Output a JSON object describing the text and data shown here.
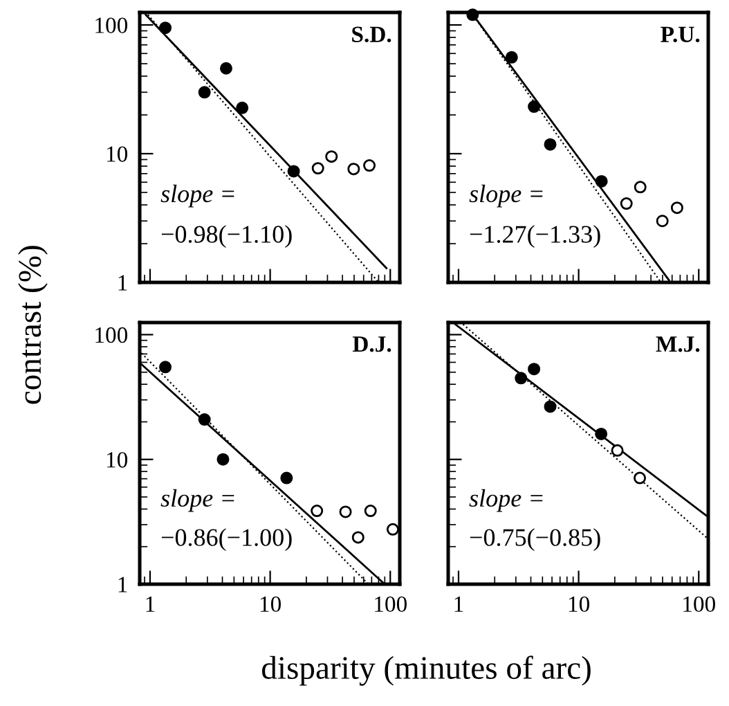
{
  "chart_data": [
    {
      "type": "scatter",
      "title": "S.D.",
      "ylabel": "contrast (%)",
      "annotations": [
        "slope =",
        "−0.98(−1.10)"
      ],
      "log": "xy",
      "xlim": [
        0.82,
        120
      ],
      "ylim": [
        1,
        125
      ],
      "xticks": [
        1,
        10,
        100
      ],
      "yticks": [
        1,
        10,
        100
      ],
      "tick_labels": "y",
      "grid": false,
      "series": [
        {
          "marker": "circle",
          "color": "#000000",
          "x": [
            1.34,
            2.84,
            4.3,
            5.85,
            15.7
          ],
          "values": [
            95,
            30,
            46,
            22.7,
            7.3
          ]
        },
        {
          "marker": "circle",
          "color": "#ffffff",
          "x": [
            25,
            32.4,
            49.6,
            67
          ],
          "values": [
            7.7,
            9.5,
            7.6,
            8.1
          ]
        },
        {
          "type": "line",
          "marker": "none",
          "line_style": "solid",
          "color": "#000000",
          "x": [
            0.92,
            93
          ],
          "values": [
            120,
            1.29
          ]
        },
        {
          "type": "line",
          "marker": "none",
          "line_style": "dotted",
          "color": "#000000",
          "x": [
            0.96,
            80
          ],
          "values": [
            120,
            1
          ]
        }
      ]
    },
    {
      "type": "scatter",
      "title": "P.U.",
      "annotations": [
        "slope =",
        "−1.27(−1.33)"
      ],
      "log": "xy",
      "xlim": [
        0.82,
        120
      ],
      "ylim": [
        1,
        125
      ],
      "xticks": [
        1,
        10,
        100
      ],
      "yticks": [
        1,
        10,
        100
      ],
      "tick_labels": false,
      "grid": false,
      "series": [
        {
          "marker": "circle",
          "color": "#000000",
          "x": [
            1.31,
            2.77,
            4.25,
            5.8,
            15.5
          ],
          "values": [
            120,
            56,
            23.2,
            11.8,
            6.1
          ]
        },
        {
          "marker": "circle",
          "color": "#ffffff",
          "x": [
            25,
            32.6,
            49.8,
            66
          ],
          "values": [
            4.1,
            5.5,
            3.0,
            3.8
          ]
        },
        {
          "type": "line",
          "marker": "none",
          "line_style": "solid",
          "color": "#000000",
          "x": [
            1.31,
            56.5
          ],
          "values": [
            121,
            1.04
          ]
        },
        {
          "type": "line",
          "marker": "none",
          "line_style": "dotted",
          "color": "#000000",
          "x": [
            1.28,
            48.4
          ],
          "values": [
            124,
            1
          ]
        }
      ]
    },
    {
      "type": "scatter",
      "title": "D.J.",
      "xlabel": "disparity (minutes of arc)",
      "annotations": [
        "slope =",
        "−0.86(−1.00)"
      ],
      "log": "xy",
      "xlim": [
        0.82,
        120
      ],
      "ylim": [
        1,
        125
      ],
      "xticks": [
        1,
        10,
        100
      ],
      "yticks": [
        1,
        10,
        100
      ],
      "grid": false,
      "series": [
        {
          "marker": "circle",
          "color": "#000000",
          "x": [
            1.34,
            2.84,
            4.05,
            13.7
          ],
          "values": [
            55,
            20.9,
            10,
            7.1
          ]
        },
        {
          "marker": "circle",
          "color": "#ffffff",
          "x": [
            24.5,
            42.4,
            54,
            68.5,
            105
          ],
          "values": [
            3.87,
            3.8,
            2.37,
            3.87,
            2.75
          ]
        },
        {
          "type": "line",
          "marker": "none",
          "line_style": "solid",
          "color": "#000000",
          "x": [
            0.85,
            90
          ],
          "values": [
            57.7,
            1
          ]
        },
        {
          "type": "line",
          "marker": "none",
          "line_style": "dotted",
          "color": "#000000",
          "x": [
            0.85,
            65.7
          ],
          "values": [
            71,
            1
          ]
        }
      ]
    },
    {
      "type": "scatter",
      "title": "M.J.",
      "annotations": [
        "slope =",
        "−0.75(−0.85)"
      ],
      "log": "xy",
      "xlim": [
        0.82,
        120
      ],
      "ylim": [
        1,
        125
      ],
      "xticks": [
        1,
        10,
        100
      ],
      "yticks": [
        1,
        10,
        100
      ],
      "tick_labels": "x",
      "grid": false,
      "series": [
        {
          "marker": "circle",
          "color": "#000000",
          "x": [
            3.31,
            4.25,
            5.8,
            15.4
          ],
          "values": [
            44.8,
            53,
            26.5,
            16
          ]
        },
        {
          "marker": "circle",
          "color": "#ffffff",
          "x": [
            21,
            32.3
          ],
          "values": [
            11.8,
            7.1
          ]
        },
        {
          "type": "line",
          "marker": "none",
          "line_style": "solid",
          "color": "#000000",
          "x": [
            0.94,
            116
          ],
          "values": [
            121,
            3.54
          ]
        },
        {
          "type": "line",
          "marker": "none",
          "line_style": "dotted",
          "color": "#000000",
          "x": [
            1.09,
            116
          ],
          "values": [
            121,
            2.37
          ]
        }
      ]
    }
  ]
}
